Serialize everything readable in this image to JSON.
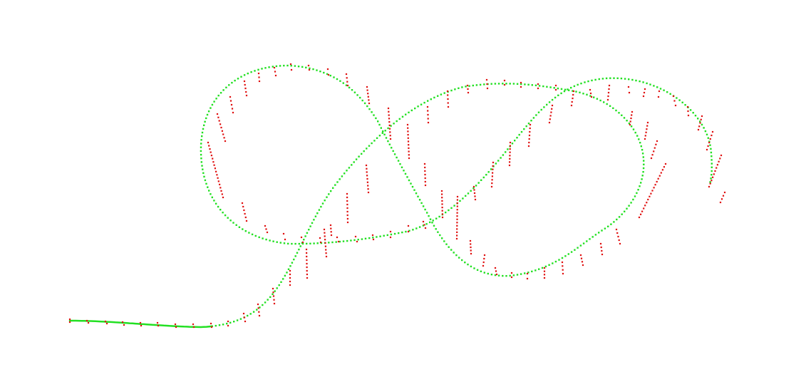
{
  "canvas": {
    "background": "#ffffff"
  },
  "colors": {
    "trajectory": "#22e022",
    "markers": "#e01010"
  }
}
